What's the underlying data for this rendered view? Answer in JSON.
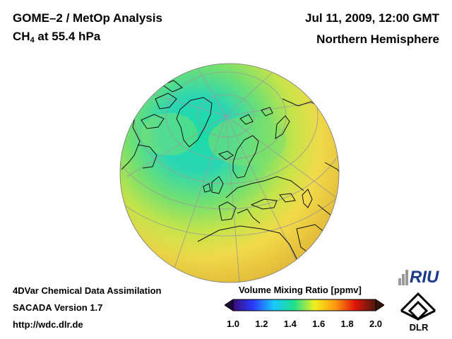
{
  "header": {
    "title_line1": "GOME–2 / MetOp Analysis",
    "species_main": "CH",
    "species_sub": "4",
    "species_rest": " at 55.4 hPa",
    "datetime": "Jul 11, 2009, 12:00 GMT",
    "region": "Northern Hemisphere"
  },
  "footer": {
    "line1": "4DVar Chemical Data Assimilation",
    "line2": "SACADA Version 1.7",
    "line3": "http://wdc.dlr.de"
  },
  "colorbar": {
    "title": "Volume Mixing Ratio [ppmv]",
    "min": 1.0,
    "max": 2.0,
    "ticks": [
      "1.0",
      "1.2",
      "1.4",
      "1.6",
      "1.8",
      "2.0"
    ],
    "colors": [
      "#3a0a7a",
      "#2a3cff",
      "#19c8ff",
      "#1ee08a",
      "#f0f020",
      "#ff9a10",
      "#e0140a",
      "#4a1a10"
    ]
  },
  "map": {
    "projection": "orthographic",
    "field_colors": {
      "low": "#1fd6a8",
      "mid": "#9ee24a",
      "high": "#f4d84a"
    }
  },
  "logos": {
    "riu": "RIU",
    "dlr": "DLR"
  }
}
